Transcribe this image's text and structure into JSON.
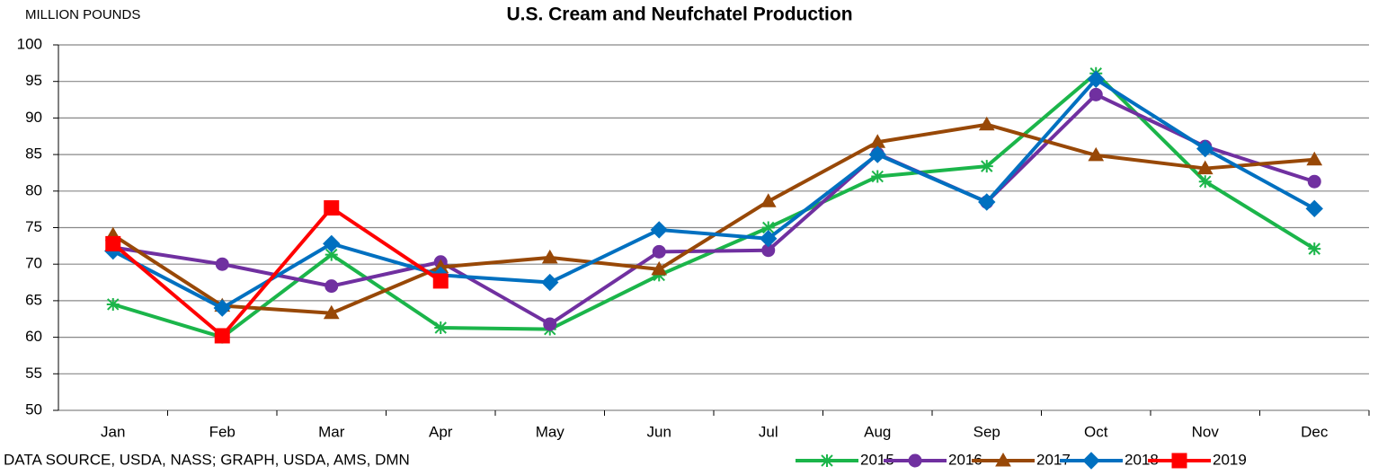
{
  "chart_data": {
    "type": "line",
    "title": "U.S. Cream and Neufchatel Production",
    "y_label": "MILLION POUNDS",
    "source": "DATA SOURCE, USDA, NASS; GRAPH, USDA, AMS, DMN",
    "categories": [
      "Jan",
      "Feb",
      "Mar",
      "Apr",
      "May",
      "Jun",
      "Jul",
      "Aug",
      "Sep",
      "Oct",
      "Nov",
      "Dec"
    ],
    "series": [
      {
        "name": "2015",
        "color": "#1bb54a",
        "marker": "star",
        "values": [
          64.5,
          60,
          71.3,
          61.3,
          61.1,
          68.5,
          75,
          82,
          83.4,
          96.1,
          81.3,
          72.1
        ]
      },
      {
        "name": "2016",
        "color": "#7030a0",
        "marker": "circle",
        "values": [
          72.3,
          70,
          67,
          70.3,
          61.8,
          71.7,
          71.9,
          85.1,
          78.5,
          93.2,
          86.1,
          81.3
        ]
      },
      {
        "name": "2017",
        "color": "#984807",
        "marker": "triangle",
        "values": [
          74,
          64.3,
          63.3,
          69.6,
          70.9,
          69.3,
          78.6,
          86.7,
          89.1,
          84.9,
          83.1,
          84.3
        ]
      },
      {
        "name": "2018",
        "color": "#0070c0",
        "marker": "diamond",
        "values": [
          71.8,
          64,
          72.8,
          68.5,
          67.5,
          74.7,
          73.5,
          85,
          78.5,
          95.3,
          85.8,
          77.6
        ]
      },
      {
        "name": "2019",
        "color": "#ff0000",
        "marker": "square",
        "values": [
          72.8,
          60.2,
          77.7,
          67.7,
          null,
          null,
          null,
          null,
          null,
          null,
          null,
          null
        ]
      }
    ],
    "ylim": [
      50,
      100
    ],
    "yticks": [
      50,
      55,
      60,
      65,
      70,
      75,
      80,
      85,
      90,
      95,
      100
    ],
    "grid": true,
    "legend": "bottom-right"
  }
}
